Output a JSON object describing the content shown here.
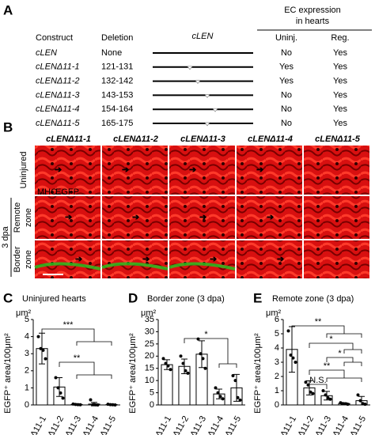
{
  "panel_a": {
    "label": "A",
    "header": [
      "EC expression",
      "in hearts"
    ],
    "columns": [
      "Construct",
      "Deletion",
      "cLEN",
      "Uninj.",
      "Reg."
    ],
    "rows": [
      [
        "cLEN",
        "None",
        "No",
        "Yes"
      ],
      [
        "cLENΔ11-1",
        "121-131",
        "Yes",
        "Yes"
      ],
      [
        "cLENΔ11-2",
        "132-142",
        "Yes",
        "Yes"
      ],
      [
        "cLENΔ11-3",
        "143-153",
        "No",
        "Yes"
      ],
      [
        "cLENΔ11-4",
        "154-164",
        "No",
        "Yes"
      ],
      [
        "cLENΔ11-5",
        "165-175",
        "No",
        "Yes"
      ]
    ]
  },
  "panel_b": {
    "label": "B",
    "columns": [
      "cLENΔ11-1",
      "cLENΔ11-2",
      "cLENΔ11-3",
      "cLENΔ11-4",
      "cLENΔ11-5"
    ],
    "rows": [
      [
        "Uninjured"
      ],
      [
        "Remote",
        "zone"
      ],
      [
        "Border",
        "zone"
      ]
    ],
    "group": "3 dpa",
    "stain_red": "MHC",
    "stain_green": "EGFP"
  },
  "chart_data": [
    {
      "type": "bar",
      "label": "C",
      "title": "Uninjured hearts",
      "unit": "μm²",
      "ylabel": "EGFP⁺ area/100μm²",
      "categories": [
        "Δ11-1",
        "Δ11-2",
        "Δ11-3",
        "Δ11-4",
        "Δ11-5"
      ],
      "values": [
        3.3,
        1.05,
        0.03,
        0.05,
        0.02
      ],
      "errors": [
        0.9,
        0.55,
        0.02,
        0.1,
        0.02
      ],
      "points": [
        [
          4.0,
          3.3,
          3.2,
          2.7
        ],
        [
          1.6,
          1.0,
          0.7,
          0.4
        ],
        [
          0.05,
          0.03,
          0.02,
          0.01
        ],
        [
          0.3,
          0.02,
          0.01,
          0.0
        ],
        [
          0.04,
          0.02,
          0.01,
          0.0
        ]
      ],
      "ylim": [
        0,
        5
      ],
      "yticks": [
        0,
        1,
        2,
        3,
        4,
        5
      ],
      "color": "#ffffff",
      "annotations": [
        "***",
        "**"
      ]
    },
    {
      "type": "bar",
      "label": "D",
      "title": "Border zone (3 dpa)",
      "unit": "μm²",
      "ylabel": "EGFP⁺ area/100μm²",
      "categories": [
        "Δ11-1",
        "Δ11-2",
        "Δ11-3",
        "Δ11-4",
        "Δ11-5"
      ],
      "values": [
        16.5,
        15.8,
        20.8,
        4.5,
        7
      ],
      "errors": [
        2,
        3,
        5.5,
        2,
        5.5
      ],
      "points": [
        [
          19,
          17,
          16,
          14.5
        ],
        [
          20,
          17,
          14,
          13
        ],
        [
          27,
          21,
          19,
          15
        ],
        [
          7,
          5,
          3.5,
          2.5
        ],
        [
          12,
          10,
          3,
          2
        ]
      ],
      "ylim": [
        0,
        35
      ],
      "yticks": [
        0,
        5,
        10,
        15,
        20,
        25,
        30,
        35
      ],
      "color": "#ffffff",
      "annotations": [
        "*"
      ]
    },
    {
      "type": "bar",
      "label": "E",
      "title": "Remote zone (3 dpa)",
      "unit": "μm²",
      "ylabel": "EGFP⁺ area/100μm²",
      "categories": [
        "Δ11-1",
        "Δ11-2",
        "Δ11-3",
        "Δ11-4",
        "Δ11-5"
      ],
      "values": [
        3.9,
        1.2,
        0.65,
        0.1,
        0.3
      ],
      "errors": [
        1.6,
        0.5,
        0.3,
        0.05,
        0.3
      ],
      "points": [
        [
          5.2,
          3.5,
          3.3,
          3.0
        ],
        [
          1.6,
          1.4,
          0.9,
          0.8
        ],
        [
          1.0,
          0.7,
          0.5,
          0.4
        ],
        [
          0.15,
          0.1,
          0.08,
          0.05
        ],
        [
          0.7,
          0.3,
          0.1,
          0.05
        ]
      ],
      "ylim": [
        0,
        6
      ],
      "yticks": [
        0,
        1,
        2,
        3,
        4,
        5,
        6
      ],
      "color": "#ffffff",
      "annotations": [
        "**",
        "*",
        "*",
        "**",
        "N.S."
      ]
    }
  ]
}
